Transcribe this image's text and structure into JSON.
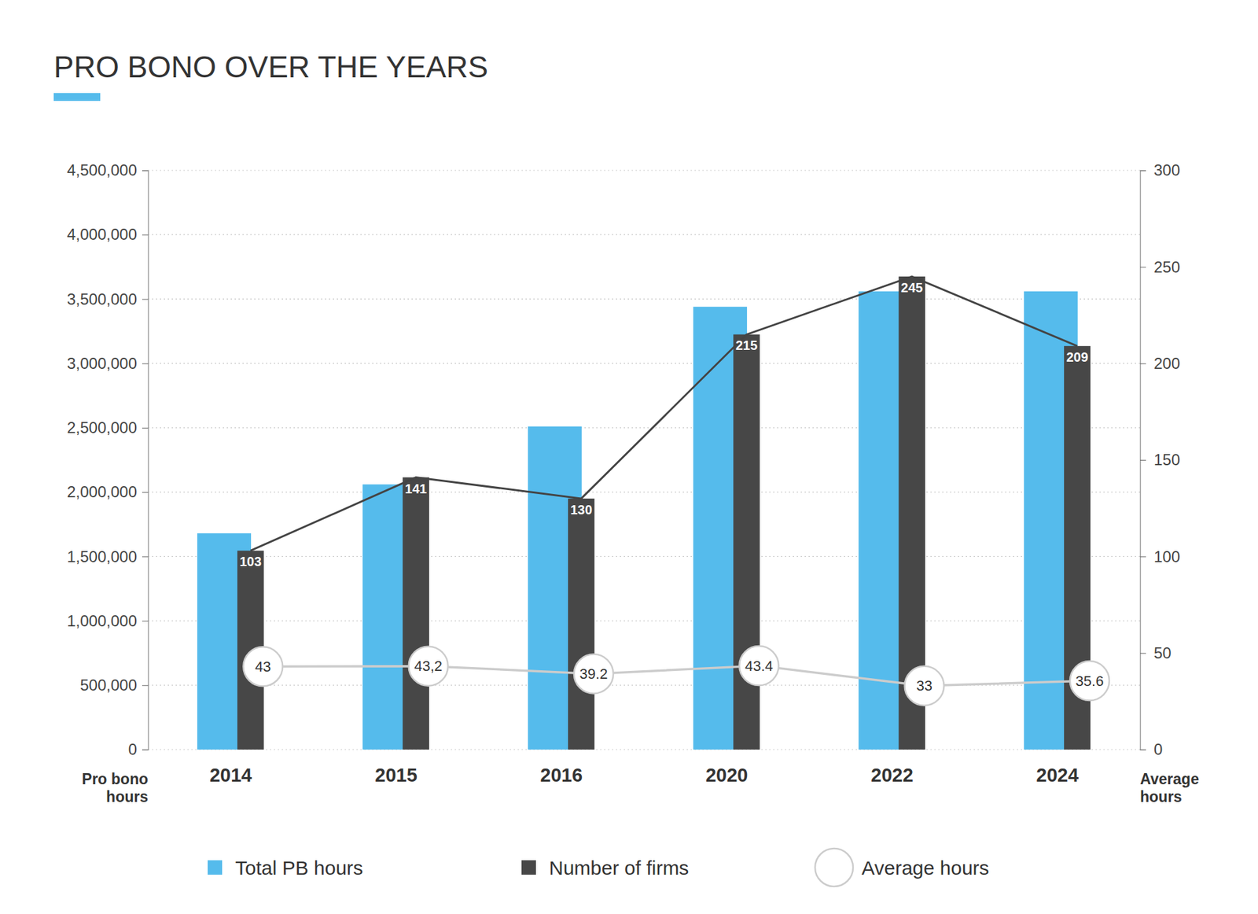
{
  "chart_data": {
    "type": "bar",
    "title": "PRO BONO OVER THE YEARS",
    "y_label": "Pro bono hours",
    "y2_label": "Average hours",
    "categories": [
      "2014",
      "2015",
      "2016",
      "2020",
      "2022",
      "2024"
    ],
    "series": [
      {
        "name": "Total PB hours",
        "type": "bar",
        "color": "#55bbec",
        "values": [
          1680000,
          2060000,
          2510000,
          3440000,
          3560000,
          3560000
        ]
      },
      {
        "name": "Number of firms",
        "type": "bar",
        "color": "#474747",
        "axis": "y2",
        "line_style": "solid",
        "data_labels": true,
        "values": [
          103,
          141,
          130,
          215,
          245,
          209
        ]
      },
      {
        "name": "Average hours",
        "type": "line",
        "color": "#cccccc",
        "axis": "y2",
        "marker": "circle",
        "data_labels": true,
        "values": [
          43,
          43.2,
          39.2,
          43.4,
          33,
          35.6
        ],
        "value_labels": [
          "43",
          "43,2",
          "39.2",
          "43.4",
          "33",
          "35.6"
        ]
      }
    ],
    "ylim": [
      0,
      4500000
    ],
    "yticks": [
      0,
      {
        "value": 500000,
        "label": "500,000"
      },
      {
        "value": 1000000,
        "label": "1,000,000"
      },
      {
        "value": 1500000,
        "label": "1,500,000"
      },
      {
        "value": 2000000,
        "label": "2,000,000"
      },
      {
        "value": 2500000,
        "label": "2,500,000"
      },
      {
        "value": 3000000,
        "label": "3,000,000"
      },
      {
        "value": 3500000,
        "label": "3,500,000"
      },
      {
        "value": 4000000,
        "label": "4,000,000"
      },
      {
        "value": 4500000,
        "label": "4,500,000"
      }
    ],
    "y2lim": [
      0,
      300
    ],
    "y2ticks": [
      0,
      50,
      100,
      150,
      200,
      250,
      300
    ],
    "grid": true,
    "legend": "bottom"
  }
}
